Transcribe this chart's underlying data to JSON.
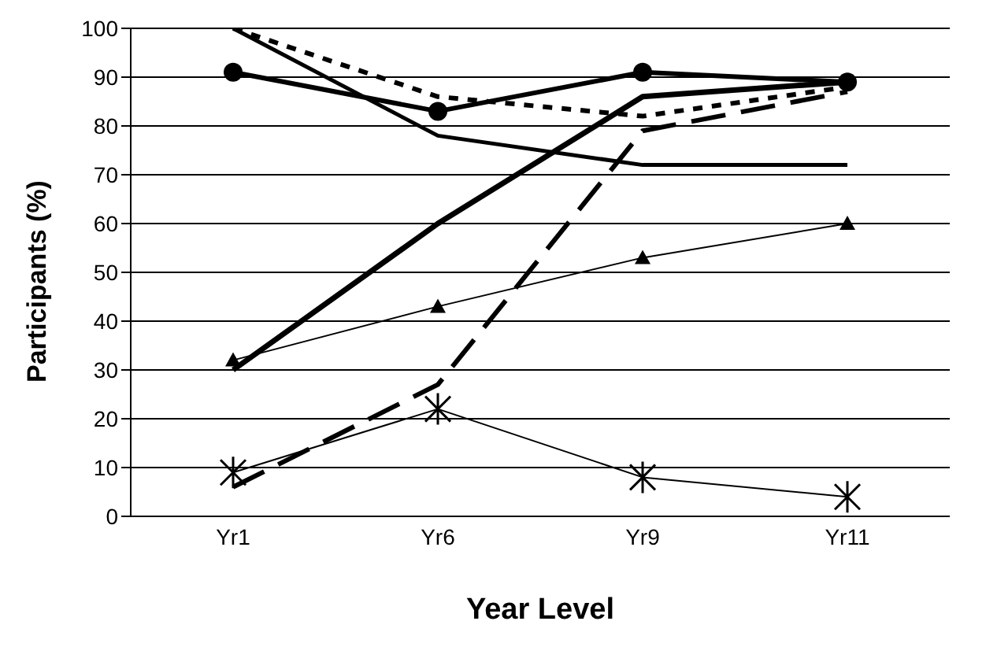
{
  "chart_data": {
    "type": "line",
    "xlabel": "Year Level",
    "ylabel": "Participants (%)",
    "categories": [
      "Yr1",
      "Yr6",
      "Yr9",
      "Yr11"
    ],
    "ylim": [
      0,
      100
    ],
    "yticks": [
      0,
      10,
      20,
      30,
      40,
      50,
      60,
      70,
      80,
      90,
      100
    ],
    "grid": "y",
    "legend": false,
    "series": [
      {
        "color": "#000000",
        "values": [
          91,
          83,
          91,
          89
        ],
        "marker": "circle",
        "line_style": "solid"
      },
      {
        "color": "#000000",
        "values": [
          100,
          86,
          82,
          88
        ],
        "marker": "none",
        "line_style": "dotted"
      },
      {
        "color": "#000000",
        "values": [
          100,
          78,
          72,
          72
        ],
        "marker": "none",
        "line_style": "solid"
      },
      {
        "color": "#000000",
        "values": [
          30,
          60,
          86,
          89
        ],
        "marker": "none",
        "line_style": "solid"
      },
      {
        "color": "#000000",
        "values": [
          6,
          27,
          79,
          87
        ],
        "marker": "none",
        "line_style": "dashed"
      },
      {
        "color": "#000000",
        "values": [
          32,
          43,
          53,
          60
        ],
        "marker": "triangle",
        "line_style": "solid"
      },
      {
        "color": "#000000",
        "values": [
          9,
          22,
          8,
          4
        ],
        "marker": "cross",
        "line_style": "solid"
      }
    ]
  }
}
